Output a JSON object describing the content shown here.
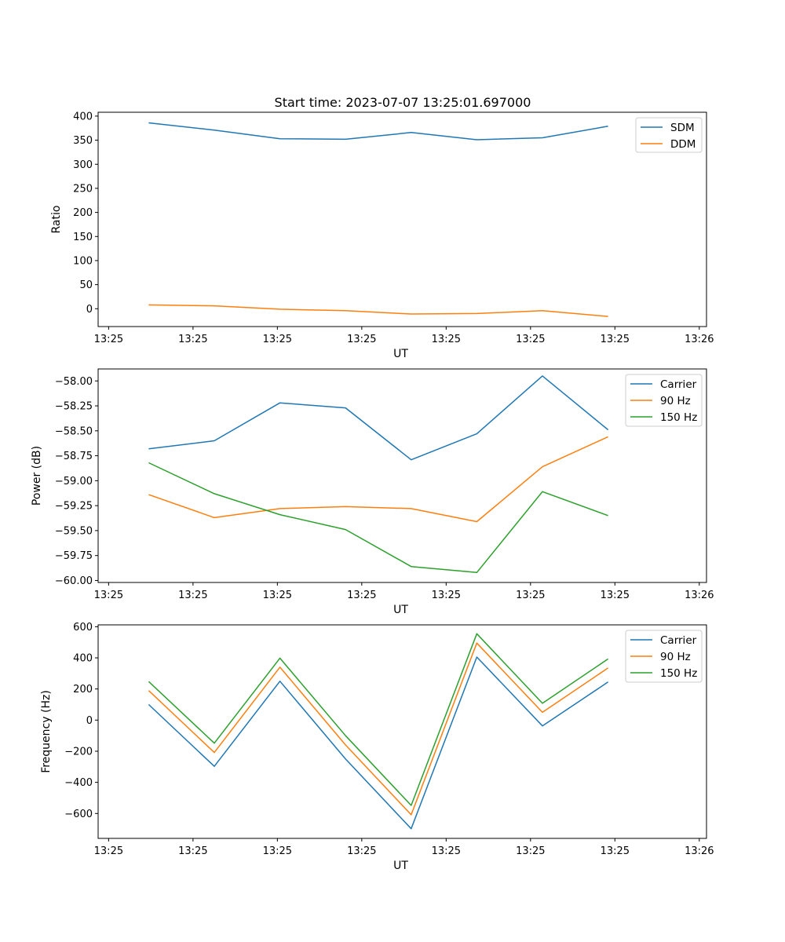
{
  "title": "Start time: 2023-07-07 13:25:01.697000",
  "chart_data": [
    {
      "type": "line",
      "xlabel": "UT",
      "ylabel": "Ratio",
      "x_tick_labels": [
        "13:25",
        "13:25",
        "13:25",
        "13:25",
        "13:25",
        "13:25",
        "13:25",
        "13:26"
      ],
      "x_index": [
        0,
        1,
        2,
        3,
        4,
        5,
        6,
        7
      ],
      "xlim": [
        -0.77,
        8.5
      ],
      "ylim": [
        -37,
        408
      ],
      "y_ticks": [
        0,
        50,
        100,
        150,
        200,
        250,
        300,
        350,
        400
      ],
      "y_tick_labels": [
        "0",
        "50",
        "100",
        "150",
        "200",
        "250",
        "300",
        "350",
        "400"
      ],
      "legend_position": "top-right",
      "series": [
        {
          "name": "SDM",
          "color": "#1f77b4",
          "values": [
            386,
            371,
            353,
            352,
            366,
            351,
            355,
            379
          ]
        },
        {
          "name": "DDM",
          "color": "#ff7f0e",
          "values": [
            8,
            6,
            -1,
            -4,
            -11,
            -10,
            -4,
            -16
          ]
        }
      ]
    },
    {
      "type": "line",
      "xlabel": "UT",
      "ylabel": "Power (dB)",
      "x_tick_labels": [
        "13:25",
        "13:25",
        "13:25",
        "13:25",
        "13:25",
        "13:25",
        "13:25",
        "13:26"
      ],
      "x_index": [
        0,
        1,
        2,
        3,
        4,
        5,
        6,
        7
      ],
      "xlim": [
        -0.77,
        8.5
      ],
      "ylim": [
        -60.02,
        -57.88
      ],
      "y_ticks": [
        -60.0,
        -59.75,
        -59.5,
        -59.25,
        -59.0,
        -58.75,
        -58.5,
        -58.25,
        -58.0
      ],
      "y_tick_labels": [
        "−60.00",
        "−59.75",
        "−59.50",
        "−59.25",
        "−59.00",
        "−58.75",
        "−58.50",
        "−58.25",
        "−58.00"
      ],
      "legend_position": "top-right",
      "series": [
        {
          "name": "Carrier",
          "color": "#1f77b4",
          "values": [
            -58.68,
            -58.6,
            -58.22,
            -58.27,
            -58.79,
            -58.53,
            -57.95,
            -58.49
          ]
        },
        {
          "name": "90 Hz",
          "color": "#ff7f0e",
          "values": [
            -59.14,
            -59.37,
            -59.28,
            -59.26,
            -59.28,
            -59.41,
            -58.86,
            -58.56
          ]
        },
        {
          "name": "150 Hz",
          "color": "#2ca02c",
          "values": [
            -58.82,
            -59.13,
            -59.34,
            -59.49,
            -59.86,
            -59.92,
            -59.11,
            -59.35
          ]
        }
      ]
    },
    {
      "type": "line",
      "xlabel": "UT",
      "ylabel": "Frequency (Hz)",
      "x_tick_labels": [
        "13:25",
        "13:25",
        "13:25",
        "13:25",
        "13:25",
        "13:25",
        "13:25",
        "13:26"
      ],
      "x_index": [
        0,
        1,
        2,
        3,
        4,
        5,
        6,
        7
      ],
      "xlim": [
        -0.77,
        8.5
      ],
      "ylim": [
        -760,
        612
      ],
      "y_ticks": [
        -600,
        -400,
        -200,
        0,
        200,
        400,
        600
      ],
      "y_tick_labels": [
        "−600",
        "−400",
        "−200",
        "0",
        "200",
        "400",
        "600"
      ],
      "legend_position": "top-right",
      "series": [
        {
          "name": "Carrier",
          "color": "#1f77b4",
          "values": [
            100,
            -297,
            250,
            -250,
            -698,
            405,
            -37,
            245
          ]
        },
        {
          "name": "90 Hz",
          "color": "#ff7f0e",
          "values": [
            190,
            -208,
            340,
            -160,
            -608,
            495,
            50,
            335
          ]
        },
        {
          "name": "150 Hz",
          "color": "#2ca02c",
          "values": [
            248,
            -148,
            398,
            -100,
            -548,
            555,
            108,
            393
          ]
        }
      ]
    }
  ]
}
